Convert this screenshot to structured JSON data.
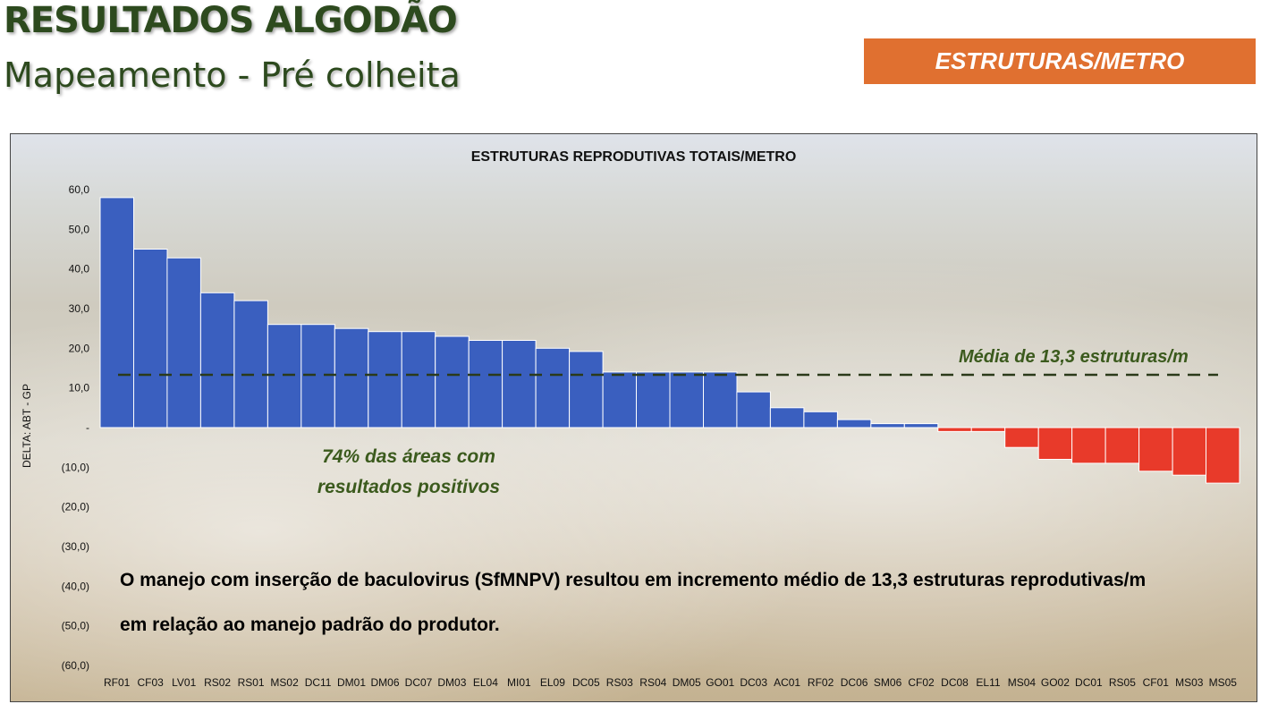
{
  "header": {
    "title": "RESULTADOS ALGODÃO",
    "subtitle": "Mapeamento - Pré colheita",
    "badge": "ESTRUTURAS/METRO"
  },
  "annotations": {
    "positive_areas": "74% das áreas com resultados positivos",
    "mean_label": "Média de 13,3 estruturas/m",
    "summary": "O manejo com inserção de baculovirus (SfMNPV) resultou em incremento médio de 13,3 estruturas reprodutivas/m em relação ao manejo padrão do produtor."
  },
  "colors": {
    "title_green": "#2d4a1e",
    "badge_orange": "#e07030",
    "positive_bar": "#3a5fbf",
    "negative_bar": "#e83a2a",
    "annotation_green": "#3b5a1d"
  },
  "chart_data": {
    "type": "bar",
    "title": "ESTRUTURAS REPRODUTIVAS TOTAIS/METRO",
    "ylabel": "DELTA: ABT - GP",
    "xlabel": "",
    "ylim": [
      -60,
      60
    ],
    "yticks": [
      60,
      50,
      40,
      30,
      20,
      10,
      0,
      -10,
      -20,
      -30,
      -40,
      -50,
      -60
    ],
    "ytick_labels": [
      "60,0",
      "50,0",
      "40,0",
      "30,0",
      "20,0",
      "10,0",
      "-",
      "(10,0)",
      "(20,0)",
      "(30,0)",
      "(40,0)",
      "(50,0)",
      "(60,0)"
    ],
    "categories": [
      "RF01",
      "CF03",
      "LV01",
      "RS02",
      "RS01",
      "MS02",
      "DC11",
      "DM01",
      "DM06",
      "DC07",
      "DM03",
      "EL04",
      "MI01",
      "EL09",
      "DC05",
      "RS03",
      "RS04",
      "DM05",
      "GO01",
      "DC03",
      "AC01",
      "RF02",
      "DC06",
      "SM06",
      "CF02",
      "DC08",
      "EL11",
      "MS04",
      "GO02",
      "DC01",
      "RS05",
      "CF01",
      "MS03",
      "MS05"
    ],
    "values": [
      58,
      45,
      42.8,
      34,
      32,
      26,
      26,
      25,
      24.2,
      24.2,
      23,
      22,
      22,
      20,
      19.2,
      14,
      14,
      14,
      14,
      9,
      5,
      4,
      2,
      1,
      1,
      -1,
      -1,
      -5,
      -8,
      -9,
      -9,
      -11,
      -12,
      -14
    ],
    "mean": 13.3,
    "grid": false,
    "legend": "none"
  }
}
